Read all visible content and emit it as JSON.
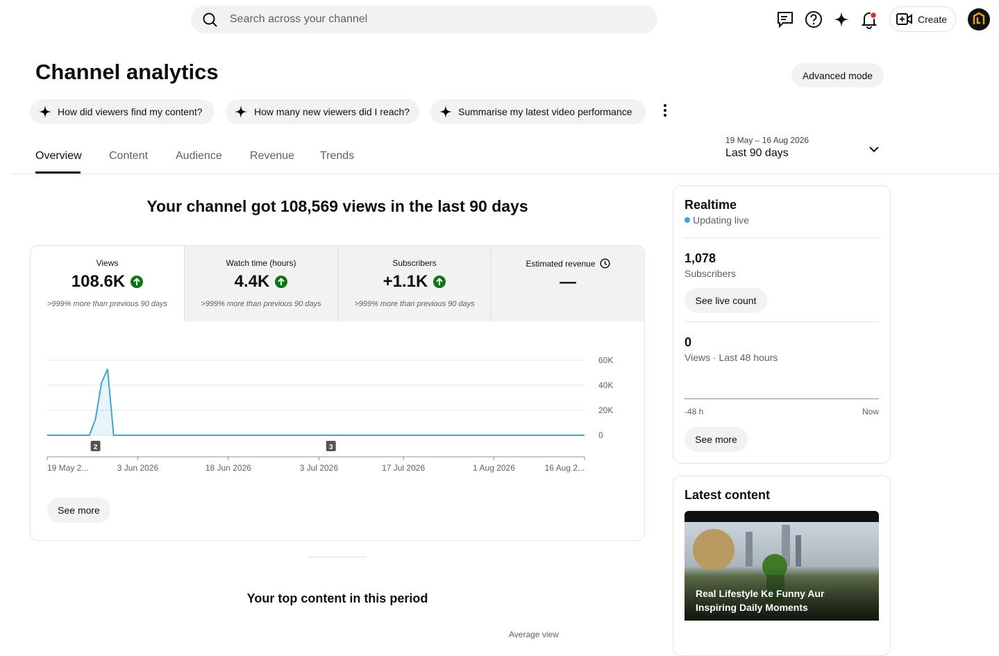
{
  "header": {
    "search_placeholder": "Search across your channel",
    "create": "Create"
  },
  "title": "Channel analytics",
  "advanced_mode": "Advanced mode",
  "prompts": [
    "How did viewers find my content?",
    "How many new viewers did I reach?",
    "Summarise my latest video performance"
  ],
  "tabs": [
    "Overview",
    "Content",
    "Audience",
    "Revenue",
    "Trends"
  ],
  "date_range": {
    "dates": "19 May – 16 Aug 2026",
    "period": "Last 90 days"
  },
  "headline": "Your channel got 108,569 views in the last 90 days",
  "metrics": [
    {
      "label": "Views",
      "value": "108.6K",
      "change": ">999% more than previous 90 days"
    },
    {
      "label": "Watch time (hours)",
      "value": "4.4K",
      "change": ">999% more than previous 90 days"
    },
    {
      "label": "Subscribers",
      "value": "+1.1K",
      "change": ">999% more than previous 90 days"
    },
    {
      "label": "Estimated revenue",
      "value": "—"
    }
  ],
  "chart": {
    "type": "line",
    "color": "#3ea6d4",
    "x": [
      "19 May 2026",
      "26 May 2026",
      "27 May 2026",
      "28 May 2026",
      "29 May 2026",
      "30 May 2026",
      "16 Aug 2026"
    ],
    "values": [
      0,
      0,
      13000,
      42000,
      53000,
      0,
      0
    ],
    "xlim": [
      "19 May 2026",
      "16 Aug 2026"
    ],
    "xticks": [
      {
        "value": "19 May 2026",
        "label": "19 May 2..."
      },
      "3 Jun 2026",
      "18 Jun 2026",
      "3 Jul 2026",
      "17 Jul 2026",
      "1 Aug 2026",
      {
        "value": "16 Aug 2026",
        "label": "16 Aug 2..."
      }
    ],
    "ylim": [
      0,
      60000
    ],
    "yticks": [
      {
        "value": 0,
        "label": "0"
      },
      {
        "value": 20000,
        "label": "20K"
      },
      {
        "value": 40000,
        "label": "40K"
      },
      {
        "value": 60000,
        "label": "60K"
      }
    ],
    "grid": true,
    "annotations": [
      {
        "x": "27 May 2026",
        "label": "2"
      },
      {
        "x": "5 Jul 2026",
        "label": "3"
      }
    ]
  },
  "see_more": "See more",
  "realtime": {
    "title": "Realtime",
    "status": "Updating live",
    "subscribers": "1,078",
    "subscribers_label": "Subscribers",
    "live_count": "See live count",
    "views": "0",
    "views_label": "Views · Last 48 hours",
    "axis_start": "-48 h",
    "axis_end": "Now",
    "see_more": "See more"
  },
  "latest": {
    "title": "Latest content",
    "video_title": "Real Lifestyle Ke Funny Aur Inspiring Daily Moments"
  },
  "top_content": {
    "title": "Your top content in this period",
    "column": "Average view"
  }
}
